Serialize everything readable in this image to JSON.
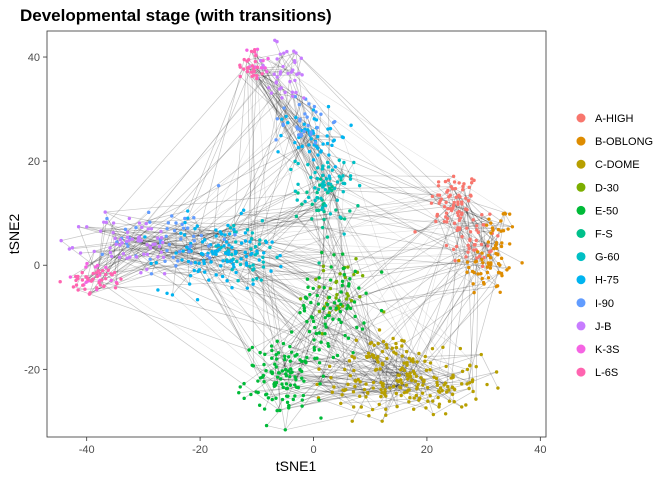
{
  "chart_data": {
    "type": "scatter",
    "title": "Developmental stage (with transitions)",
    "xlabel": "tSNE1",
    "ylabel": "tSNE2",
    "xlim": [
      -47,
      41
    ],
    "ylim": [
      -33,
      45
    ],
    "xticks": [
      -40,
      -20,
      0,
      20,
      40
    ],
    "yticks": [
      -20,
      0,
      20,
      40
    ],
    "grid": false,
    "legend_position": "right",
    "edge_color": "#000000",
    "series": [
      {
        "name": "A-HIGH",
        "color": "#F8766D",
        "clusters": [
          {
            "cx": 25,
            "cy": 12,
            "sx": 2.2,
            "sy": 3.0,
            "n": 70
          },
          {
            "cx": 28,
            "cy": 5,
            "sx": 2.5,
            "sy": 3.0,
            "n": 40
          }
        ]
      },
      {
        "name": "B-OBLONG",
        "color": "#DE8C00",
        "clusters": [
          {
            "cx": 31,
            "cy": 0,
            "sx": 2.5,
            "sy": 3.0,
            "n": 50
          },
          {
            "cx": 33,
            "cy": 7,
            "sx": 1.5,
            "sy": 2.0,
            "n": 20
          }
        ]
      },
      {
        "name": "C-DOME",
        "color": "#B79F00",
        "clusters": [
          {
            "cx": 17,
            "cy": -23,
            "sx": 6.5,
            "sy": 3.0,
            "n": 170
          },
          {
            "cx": 12,
            "cy": -17,
            "sx": 3.0,
            "sy": 1.8,
            "n": 40
          }
        ]
      },
      {
        "name": "D-30",
        "color": "#7CAE00",
        "clusters": [
          {
            "cx": 4,
            "cy": -5,
            "sx": 3.0,
            "sy": 3.5,
            "n": 35
          }
        ]
      },
      {
        "name": "E-50",
        "color": "#00BA38",
        "clusters": [
          {
            "cx": -5,
            "cy": -22,
            "sx": 3.5,
            "sy": 3.5,
            "n": 110
          },
          {
            "cx": 3,
            "cy": -8,
            "sx": 3.0,
            "sy": 5.0,
            "n": 80
          }
        ]
      },
      {
        "name": "F-S",
        "color": "#00C08B",
        "clusters": [
          {
            "cx": 2,
            "cy": 12,
            "sx": 2.0,
            "sy": 3.0,
            "n": 30
          }
        ]
      },
      {
        "name": "G-60",
        "color": "#00BFC4",
        "clusters": [
          {
            "cx": 2,
            "cy": 15,
            "sx": 2.5,
            "sy": 3.0,
            "n": 55
          },
          {
            "cx": -12,
            "cy": 2,
            "sx": 4.0,
            "sy": 3.0,
            "n": 40
          }
        ]
      },
      {
        "name": "H-75",
        "color": "#00B4F0",
        "clusters": [
          {
            "cx": -17,
            "cy": 2,
            "sx": 5.0,
            "sy": 3.5,
            "n": 100
          },
          {
            "cx": 0,
            "cy": 25,
            "sx": 3.0,
            "sy": 3.0,
            "n": 50
          }
        ]
      },
      {
        "name": "I-90",
        "color": "#619CFF",
        "clusters": [
          {
            "cx": -25,
            "cy": 5,
            "sx": 5.0,
            "sy": 3.0,
            "n": 50
          },
          {
            "cx": -2,
            "cy": 28,
            "sx": 2.5,
            "sy": 2.5,
            "n": 30
          }
        ]
      },
      {
        "name": "J-B",
        "color": "#C77CFF",
        "clusters": [
          {
            "cx": -32,
            "cy": 4,
            "sx": 4.0,
            "sy": 3.0,
            "n": 60
          },
          {
            "cx": -5,
            "cy": 37,
            "sx": 3.0,
            "sy": 3.0,
            "n": 40
          }
        ]
      },
      {
        "name": "K-3S",
        "color": "#F564E3",
        "clusters": [
          {
            "cx": -38,
            "cy": -2,
            "sx": 2.0,
            "sy": 1.5,
            "n": 15
          },
          {
            "cx": -10,
            "cy": 39,
            "sx": 1.5,
            "sy": 1.5,
            "n": 10
          }
        ]
      },
      {
        "name": "L-6S",
        "color": "#FF64B0",
        "clusters": [
          {
            "cx": -38,
            "cy": -3,
            "sx": 2.5,
            "sy": 1.2,
            "n": 40
          },
          {
            "cx": -11,
            "cy": 39,
            "sx": 1.2,
            "sy": 2.0,
            "n": 25
          }
        ]
      }
    ]
  }
}
